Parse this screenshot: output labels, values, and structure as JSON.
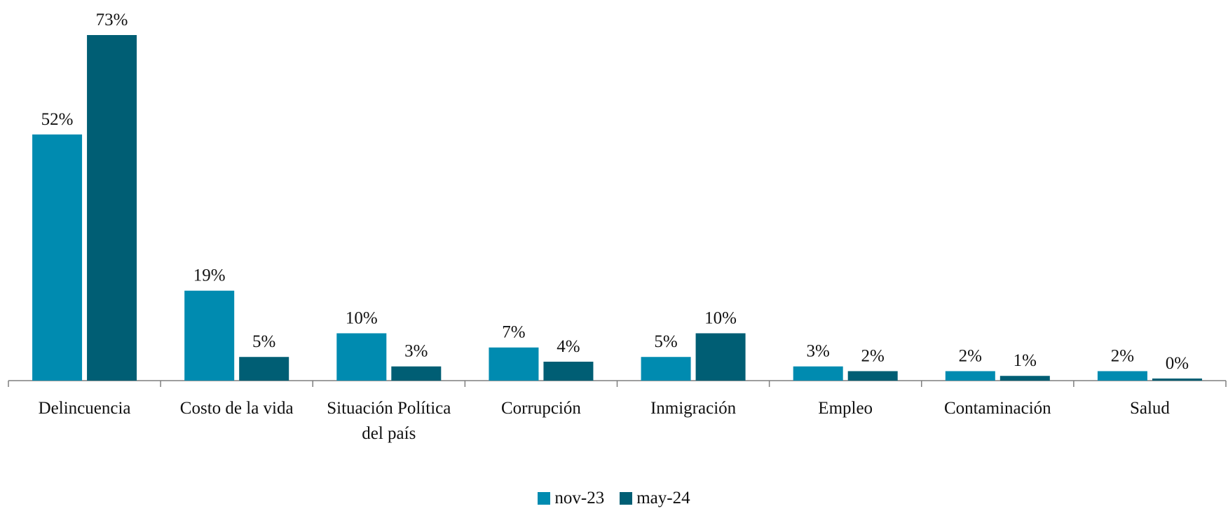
{
  "chart_data": {
    "type": "bar",
    "categories": [
      [
        "Delincuencia"
      ],
      [
        "Costo de la vida"
      ],
      [
        "Situación Política",
        "del país"
      ],
      [
        "Corrupción"
      ],
      [
        "Inmigración"
      ],
      [
        "Empleo"
      ],
      [
        "Contaminación"
      ],
      [
        "Salud"
      ]
    ],
    "series": [
      {
        "name": "nov-23",
        "color": "#008BB0",
        "values": [
          52,
          19,
          10,
          7,
          5,
          3,
          2,
          2
        ],
        "labels": [
          "52%",
          "19%",
          "10%",
          "7%",
          "5%",
          "3%",
          "2%",
          "2%"
        ]
      },
      {
        "name": "may-24",
        "color": "#005E74",
        "values": [
          73,
          5,
          3,
          4,
          10,
          2,
          1,
          0
        ],
        "labels": [
          "73%",
          "5%",
          "3%",
          "4%",
          "10%",
          "2%",
          "1%",
          "0%"
        ]
      }
    ],
    "ylim": [
      0,
      73
    ],
    "grid": false,
    "legend_position": "bottom"
  },
  "legend": {
    "items": [
      {
        "label": "nov-23",
        "color": "#008BB0"
      },
      {
        "label": "may-24",
        "color": "#005E74"
      }
    ]
  }
}
